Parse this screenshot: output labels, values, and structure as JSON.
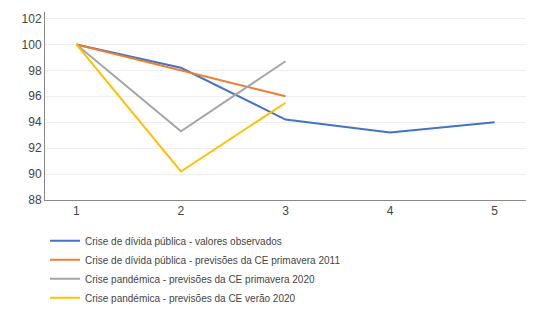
{
  "chart_data": {
    "type": "line",
    "x": [
      1,
      2,
      3,
      4,
      5
    ],
    "series": [
      {
        "name": "Crise de dívida pública - valores observados",
        "color": "#4472C4",
        "values": [
          100,
          98.2,
          94.2,
          93.2,
          94.0
        ]
      },
      {
        "name": "Crise de dívida pública - previsões da CE primavera 2011",
        "color": "#ED7D31",
        "values": [
          100,
          98.0,
          96.0,
          null,
          null
        ]
      },
      {
        "name": "Crise pandémica - previsões da CE primavera 2020",
        "color": "#A5A5A5",
        "values": [
          100,
          93.3,
          98.7,
          null,
          null
        ]
      },
      {
        "name": "Crise pandémica - previsões da CE verão 2020",
        "color": "#FFC000",
        "values": [
          100,
          90.2,
          95.5,
          null,
          null
        ]
      }
    ],
    "xlim": [
      0.7,
      5.3
    ],
    "xticks": [
      1,
      2,
      3,
      4,
      5
    ],
    "ylim": [
      88,
      102.5
    ],
    "yticks": [
      88,
      90,
      92,
      94,
      96,
      98,
      100,
      102
    ],
    "grid": true,
    "legend": "bottom"
  }
}
